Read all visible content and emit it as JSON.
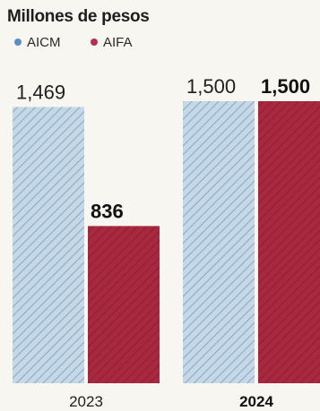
{
  "chart_data": {
    "type": "bar",
    "title": "Millones de pesos",
    "categories": [
      "2023",
      "2024"
    ],
    "series": [
      {
        "name": "AICM",
        "values": [
          1469,
          1500
        ],
        "labels": [
          "1,469",
          "1,500"
        ],
        "color": "#b9cfe0",
        "pattern": "diagonal-hatch"
      },
      {
        "name": "AIFA",
        "values": [
          836,
          1500
        ],
        "labels": [
          "836",
          "1,500"
        ],
        "color": "#a52a45",
        "pattern": "diagonal-hatch"
      }
    ],
    "ylim": [
      0,
      1500
    ],
    "grid": false,
    "legend": "top-left",
    "legend_marker_colors": [
      "#5b8fc7",
      "#b52f50"
    ],
    "bold_category": "2024"
  }
}
